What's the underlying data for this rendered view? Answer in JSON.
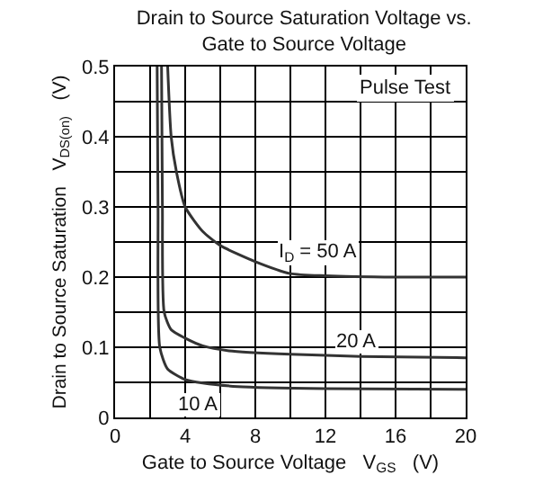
{
  "chart_data": {
    "type": "line",
    "title": "Drain to Source Saturation Voltage vs.\nGate to Source Voltage",
    "xlabel": "Gate to Source Voltage   V$_{GS}$   (V)",
    "ylabel": "Drain to Source Saturation   V$_{DS(on)}$   (V)",
    "annotations": [
      "Pulse Test"
    ],
    "series": [
      {
        "name": "I$_{D}$ = 50 A",
        "color": "#333333",
        "x": [
          3.0,
          3.2,
          3.5,
          4.0,
          5,
          6,
          8,
          10,
          12,
          16,
          20
        ],
        "values": [
          0.5,
          0.4,
          0.35,
          0.3,
          0.265,
          0.245,
          0.222,
          0.205,
          0.202,
          0.2,
          0.2
        ]
      },
      {
        "name": "20 A",
        "color": "#333333",
        "x": [
          2.65,
          2.7,
          2.8,
          3.2,
          4,
          5,
          6.5,
          10,
          14,
          20
        ],
        "values": [
          0.5,
          0.3,
          0.15,
          0.125,
          0.113,
          0.102,
          0.095,
          0.09,
          0.087,
          0.085
        ]
      },
      {
        "name": "10 A",
        "color": "#333333",
        "x": [
          2.4,
          2.45,
          2.55,
          3,
          4,
          5,
          7,
          12,
          20
        ],
        "values": [
          0.5,
          0.3,
          0.1,
          0.069,
          0.054,
          0.049,
          0.044,
          0.041,
          0.04
        ]
      }
    ],
    "xlim": [
      0,
      20
    ],
    "xticks": [
      0,
      {
        "value": 2,
        "label": null
      },
      4,
      {
        "value": 6,
        "label": null
      },
      8,
      {
        "value": 10,
        "label": null
      },
      12,
      {
        "value": 14,
        "label": null
      },
      16,
      {
        "value": 18,
        "label": null
      },
      20
    ],
    "ylim": [
      0,
      0.5
    ],
    "yticks": [
      0,
      {
        "value": 0.05,
        "label": null
      },
      0.1,
      {
        "value": 0.15,
        "label": null
      },
      0.2,
      {
        "value": 0.25,
        "label": null
      },
      0.3,
      {
        "value": 0.35,
        "label": null
      },
      0.4,
      {
        "value": 0.45,
        "label": null
      },
      0.5
    ],
    "grid": true,
    "legend": false,
    "marker": "none",
    "line_style": "solid"
  }
}
